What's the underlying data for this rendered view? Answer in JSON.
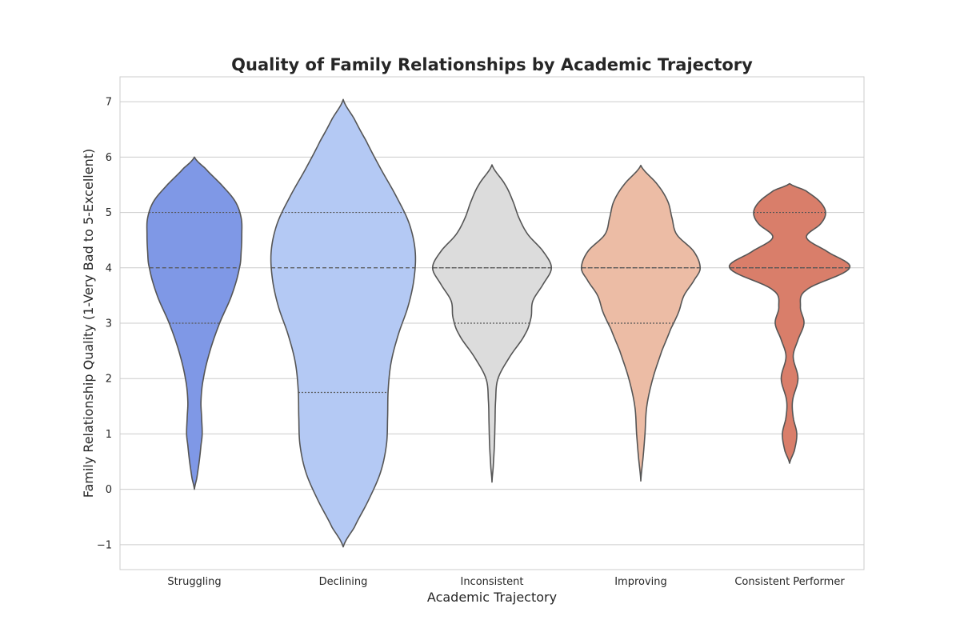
{
  "chart_data": {
    "type": "violin",
    "title": "Quality of Family Relationships by Academic Trajectory",
    "xlabel": "Academic Trajectory",
    "ylabel": "Family Relationship Quality (1-Very Bad to 5-Excellent)",
    "ylim": [
      -1.45,
      7.45
    ],
    "yticks": [
      -1,
      0,
      1,
      2,
      3,
      4,
      5,
      6,
      7
    ],
    "ytick_labels": [
      "−1",
      "0",
      "1",
      "2",
      "3",
      "4",
      "5",
      "6",
      "7"
    ],
    "grid": true,
    "categories": [
      "Struggling",
      "Declining",
      "Inconsistent",
      "Improving",
      "Consistent Performer"
    ],
    "colors": [
      "#7f98e6",
      "#b4c9f4",
      "#dcdcdc",
      "#ecbca5",
      "#d97e6a"
    ],
    "series": [
      {
        "category": "Struggling",
        "min": 0.0,
        "max": 6.0,
        "q1": 3.0,
        "median": 4.0,
        "q3": 5.0,
        "density": [
          [
            0.0,
            0.0
          ],
          [
            0.2,
            0.04
          ],
          [
            0.5,
            0.08
          ],
          [
            0.8,
            0.11
          ],
          [
            1.0,
            0.13
          ],
          [
            1.3,
            0.12
          ],
          [
            1.6,
            0.11
          ],
          [
            2.0,
            0.15
          ],
          [
            2.5,
            0.26
          ],
          [
            3.0,
            0.42
          ],
          [
            3.5,
            0.62
          ],
          [
            4.0,
            0.75
          ],
          [
            4.3,
            0.78
          ],
          [
            4.6,
            0.79
          ],
          [
            4.9,
            0.78
          ],
          [
            5.2,
            0.68
          ],
          [
            5.5,
            0.45
          ],
          [
            5.8,
            0.18
          ],
          [
            6.0,
            0.0
          ]
        ]
      },
      {
        "category": "Declining",
        "min": -1.04,
        "max": 7.04,
        "q1": 1.75,
        "median": 4.0,
        "q3": 5.0,
        "density": [
          [
            -1.04,
            0.0
          ],
          [
            -0.7,
            0.18
          ],
          [
            -0.2,
            0.42
          ],
          [
            0.3,
            0.62
          ],
          [
            0.8,
            0.72
          ],
          [
            1.3,
            0.74
          ],
          [
            1.8,
            0.75
          ],
          [
            2.3,
            0.8
          ],
          [
            2.8,
            0.92
          ],
          [
            3.3,
            1.08
          ],
          [
            3.8,
            1.18
          ],
          [
            4.3,
            1.2
          ],
          [
            4.8,
            1.1
          ],
          [
            5.3,
            0.88
          ],
          [
            5.8,
            0.62
          ],
          [
            6.3,
            0.38
          ],
          [
            6.7,
            0.18
          ],
          [
            7.04,
            0.0
          ]
        ]
      },
      {
        "category": "Inconsistent",
        "min": 0.13,
        "max": 5.86,
        "q1": 3.0,
        "median": 4.0,
        "q3": 4.0,
        "density": [
          [
            0.13,
            0.0
          ],
          [
            0.4,
            0.02
          ],
          [
            0.8,
            0.04
          ],
          [
            1.2,
            0.05
          ],
          [
            1.6,
            0.06
          ],
          [
            2.0,
            0.1
          ],
          [
            2.4,
            0.3
          ],
          [
            2.8,
            0.55
          ],
          [
            3.1,
            0.65
          ],
          [
            3.4,
            0.68
          ],
          [
            3.7,
            0.85
          ],
          [
            4.0,
            0.99
          ],
          [
            4.3,
            0.85
          ],
          [
            4.6,
            0.6
          ],
          [
            4.9,
            0.45
          ],
          [
            5.2,
            0.35
          ],
          [
            5.5,
            0.22
          ],
          [
            5.86,
            0.0
          ]
        ]
      },
      {
        "category": "Improving",
        "min": 0.15,
        "max": 5.85,
        "q1": 3.0,
        "median": 4.0,
        "q3": 4.0,
        "density": [
          [
            0.15,
            0.0
          ],
          [
            0.6,
            0.04
          ],
          [
            1.0,
            0.07
          ],
          [
            1.5,
            0.1
          ],
          [
            2.0,
            0.2
          ],
          [
            2.5,
            0.35
          ],
          [
            2.9,
            0.5
          ],
          [
            3.2,
            0.63
          ],
          [
            3.5,
            0.72
          ],
          [
            3.8,
            0.9
          ],
          [
            4.0,
            0.99
          ],
          [
            4.3,
            0.88
          ],
          [
            4.6,
            0.6
          ],
          [
            4.9,
            0.52
          ],
          [
            5.2,
            0.45
          ],
          [
            5.5,
            0.28
          ],
          [
            5.85,
            0.0
          ]
        ]
      },
      {
        "category": "Consistent Performer",
        "min": 0.47,
        "max": 5.52,
        "q1": 4.0,
        "median": 4.0,
        "q3": 5.0,
        "density": [
          [
            0.47,
            0.0
          ],
          [
            0.7,
            0.08
          ],
          [
            1.0,
            0.12
          ],
          [
            1.3,
            0.06
          ],
          [
            1.6,
            0.05
          ],
          [
            2.0,
            0.14
          ],
          [
            2.4,
            0.06
          ],
          [
            2.7,
            0.14
          ],
          [
            3.0,
            0.24
          ],
          [
            3.3,
            0.18
          ],
          [
            3.6,
            0.28
          ],
          [
            4.0,
            1.0
          ],
          [
            4.3,
            0.62
          ],
          [
            4.55,
            0.28
          ],
          [
            4.8,
            0.52
          ],
          [
            5.0,
            0.6
          ],
          [
            5.2,
            0.5
          ],
          [
            5.4,
            0.26
          ],
          [
            5.52,
            0.0
          ]
        ]
      }
    ]
  }
}
